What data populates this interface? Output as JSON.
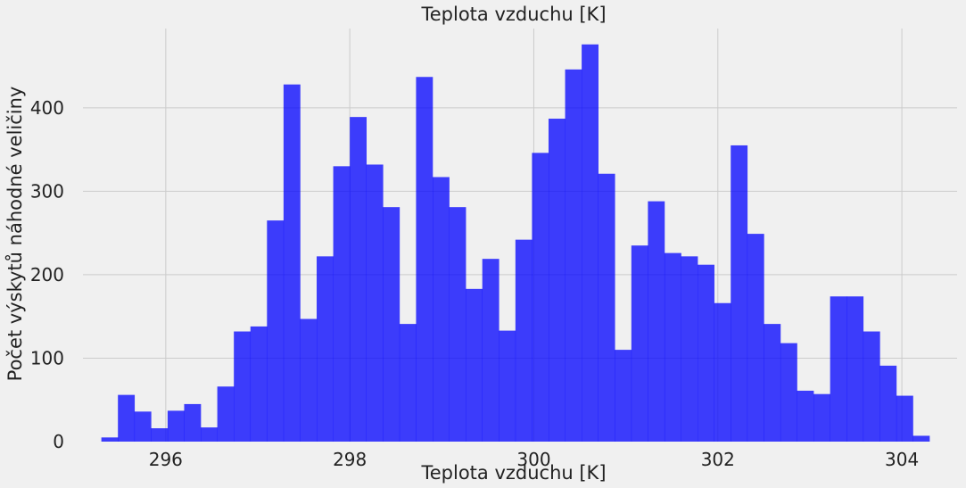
{
  "chart_data": {
    "type": "bar",
    "title": "Teplota vzduchu [K]",
    "xlabel": "Teplota vzduchu [K]",
    "ylabel": "Počet výskytů náhodné veličiny",
    "xlim": [
      295.1,
      304.6
    ],
    "ylim": [
      0,
      495
    ],
    "xticks": [
      296,
      298,
      300,
      302,
      304
    ],
    "xtick_labels": [
      "296",
      "298",
      "300",
      "302",
      "304"
    ],
    "yticks": [
      0,
      100,
      200,
      300,
      400
    ],
    "ytick_labels": [
      "0",
      "100",
      "200",
      "300",
      "400"
    ],
    "grid": true,
    "bin_start": 295.3,
    "bin_width": 0.18,
    "values": [
      5,
      56,
      36,
      16,
      37,
      45,
      17,
      66,
      132,
      138,
      265,
      428,
      147,
      222,
      330,
      389,
      332,
      281,
      141,
      437,
      317,
      281,
      183,
      219,
      133,
      242,
      346,
      387,
      446,
      476,
      321,
      110,
      235,
      288,
      226,
      222,
      212,
      166,
      355,
      249,
      141,
      118,
      61,
      57,
      174,
      174,
      132,
      91,
      55,
      7
    ],
    "colors": {
      "bar": "#0000ff",
      "background": "#f0f0f0",
      "grid": "#cbcbcb"
    }
  }
}
